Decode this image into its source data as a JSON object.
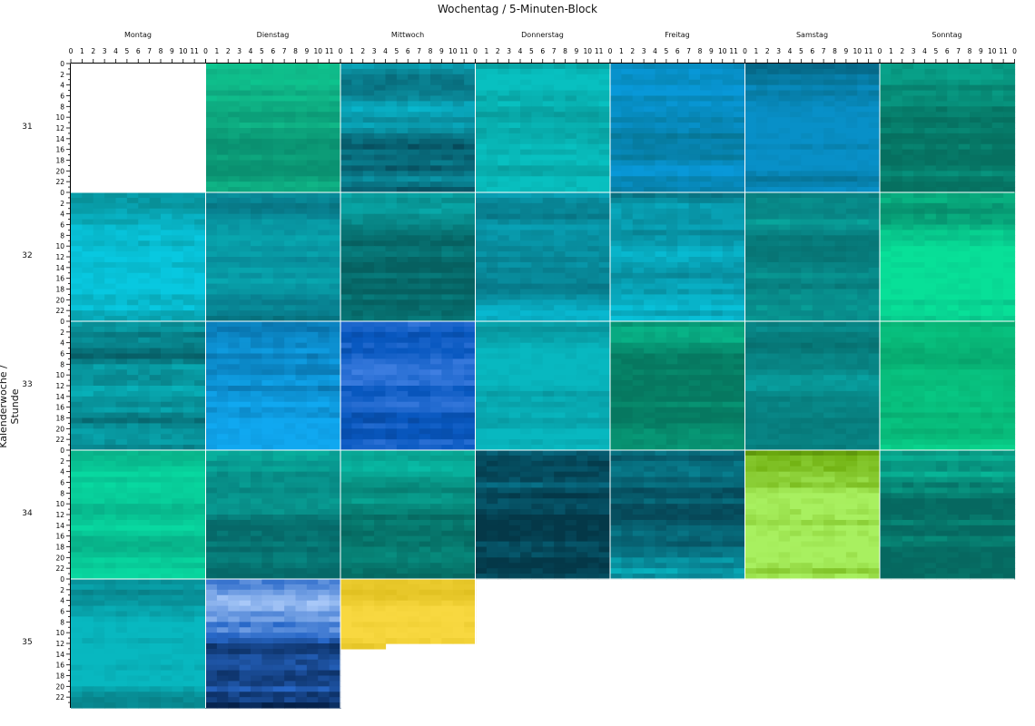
{
  "title": "Wochentag / 5-Minuten-Block",
  "ylabel": "Kalenderwoche / Stunde",
  "days": [
    "Montag",
    "Dienstag",
    "Mittwoch",
    "Donnerstag",
    "Freitag",
    "Samstag",
    "Sonntag"
  ],
  "weeks": [
    "31",
    "32",
    "33",
    "34",
    "35"
  ],
  "minute_ticks": [
    "0",
    "1",
    "2",
    "3",
    "4",
    "5",
    "6",
    "7",
    "8",
    "9",
    "10",
    "11"
  ],
  "hour_ticks": [
    "0",
    "2",
    "4",
    "6",
    "8",
    "10",
    "12",
    "14",
    "16",
    "18",
    "20",
    "22"
  ],
  "chart_data": {
    "type": "heatmap",
    "title": "Wochentag / 5-Minuten-Block",
    "ylabel": "Kalenderwoche / Stunde",
    "x_groups": [
      "Montag",
      "Dienstag",
      "Mittwoch",
      "Donnerstag",
      "Freitag",
      "Samstag",
      "Sonntag"
    ],
    "x_subticks": [
      0,
      1,
      2,
      3,
      4,
      5,
      6,
      7,
      8,
      9,
      10,
      11
    ],
    "y_groups": [
      "31",
      "32",
      "33",
      "34",
      "35"
    ],
    "y_subticks": [
      0,
      2,
      4,
      6,
      8,
      10,
      12,
      14,
      16,
      18,
      20,
      22
    ],
    "cells": [
      {
        "week": "31",
        "day": "Montag",
        "present": false
      },
      {
        "week": "31",
        "day": "Dienstag",
        "present": true,
        "colors": [
          "#08d898",
          "#10b888",
          "#0a9070"
        ]
      },
      {
        "week": "31",
        "day": "Mittwoch",
        "present": true,
        "colors": [
          "#08c0d8",
          "#0a8898",
          "#064858"
        ]
      },
      {
        "week": "31",
        "day": "Donnerstag",
        "present": true,
        "colors": [
          "#08c0c0",
          "#089090",
          "#066860"
        ]
      },
      {
        "week": "31",
        "day": "Freitag",
        "present": true,
        "colors": [
          "#0898d8",
          "#067898",
          "#044868"
        ]
      },
      {
        "week": "31",
        "day": "Samstag",
        "present": true,
        "colors": [
          "#0890c8",
          "#067090",
          "#045070"
        ]
      },
      {
        "week": "31",
        "day": "Sonntag",
        "present": true,
        "colors": [
          "#08c8a8",
          "#08a088",
          "#067060"
        ]
      },
      {
        "week": "32",
        "day": "Montag",
        "present": true,
        "colors": [
          "#08c8e0",
          "#089098",
          "#065060"
        ]
      },
      {
        "week": "32",
        "day": "Dienstag",
        "present": true,
        "colors": [
          "#08a8b0",
          "#088090",
          "#066068"
        ]
      },
      {
        "week": "32",
        "day": "Mittwoch",
        "present": true,
        "colors": [
          "#08c0c0",
          "#089090",
          "#066060"
        ]
      },
      {
        "week": "32",
        "day": "Donnerstag",
        "present": true,
        "colors": [
          "#08b8d0",
          "#088898",
          "#066070"
        ]
      },
      {
        "week": "32",
        "day": "Freitag",
        "present": true,
        "colors": [
          "#08c0d8",
          "#088898",
          "#065868"
        ]
      },
      {
        "week": "32",
        "day": "Samstag",
        "present": true,
        "colors": [
          "#08b8a8",
          "#088888",
          "#066868"
        ]
      },
      {
        "week": "32",
        "day": "Sonntag",
        "present": true,
        "colors": [
          "#08e098",
          "#08b080",
          "#067860"
        ]
      },
      {
        "week": "33",
        "day": "Montag",
        "present": true,
        "colors": [
          "#08c8d0",
          "#088890",
          "#064850"
        ]
      },
      {
        "week": "33",
        "day": "Dienstag",
        "present": true,
        "colors": [
          "#10a8f0",
          "#0870a8",
          "#043058"
        ]
      },
      {
        "week": "33",
        "day": "Mittwoch",
        "present": true,
        "colors": [
          "#5890f0",
          "#0858c0",
          "#043070"
        ]
      },
      {
        "week": "33",
        "day": "Donnerstag",
        "present": true,
        "colors": [
          "#08b8c0",
          "#089098",
          "#066870"
        ]
      },
      {
        "week": "33",
        "day": "Freitag",
        "present": true,
        "colors": [
          "#08e0a0",
          "#08a880",
          "#067860"
        ]
      },
      {
        "week": "33",
        "day": "Samstag",
        "present": true,
        "colors": [
          "#08b0b0",
          "#088888",
          "#066868"
        ]
      },
      {
        "week": "33",
        "day": "Sonntag",
        "present": true,
        "colors": [
          "#08d890",
          "#08b878",
          "#069060"
        ]
      },
      {
        "week": "34",
        "day": "Montag",
        "present": true,
        "colors": [
          "#08d8a0",
          "#08b088",
          "#068068"
        ]
      },
      {
        "week": "34",
        "day": "Dienstag",
        "present": true,
        "colors": [
          "#08d0b0",
          "#089890",
          "#066868"
        ]
      },
      {
        "week": "34",
        "day": "Mittwoch",
        "present": true,
        "colors": [
          "#08c8b0",
          "#089888",
          "#066860"
        ]
      },
      {
        "week": "34",
        "day": "Donnerstag",
        "present": true,
        "colors": [
          "#08c0e0",
          "#087890",
          "#043848"
        ]
      },
      {
        "week": "34",
        "day": "Freitag",
        "present": true,
        "colors": [
          "#08e0e8",
          "#088090",
          "#064858"
        ]
      },
      {
        "week": "34",
        "day": "Samstag",
        "present": true,
        "colors": [
          "#a8f060",
          "#70b010",
          "#386000"
        ]
      },
      {
        "week": "34",
        "day": "Sonntag",
        "present": true,
        "colors": [
          "#08d8b0",
          "#08a088",
          "#066860"
        ]
      },
      {
        "week": "35",
        "day": "Montag",
        "present": true,
        "colors": [
          "#08b8c0",
          "#088890",
          "#066060"
        ]
      },
      {
        "week": "35",
        "day": "Dienstag",
        "present": true,
        "colors": [
          "#a8c8f8",
          "#2868c8",
          "#042048"
        ]
      },
      {
        "week": "35",
        "day": "Mittwoch",
        "present": true,
        "colors": [
          "#f8d840",
          "#e0c020",
          "#c8a800"
        ]
      },
      {
        "week": "35",
        "day": "Donnerstag",
        "present": false
      },
      {
        "week": "35",
        "day": "Freitag",
        "present": false
      },
      {
        "week": "35",
        "day": "Samstag",
        "present": false
      },
      {
        "week": "35",
        "day": "Sonntag",
        "present": false
      }
    ]
  }
}
